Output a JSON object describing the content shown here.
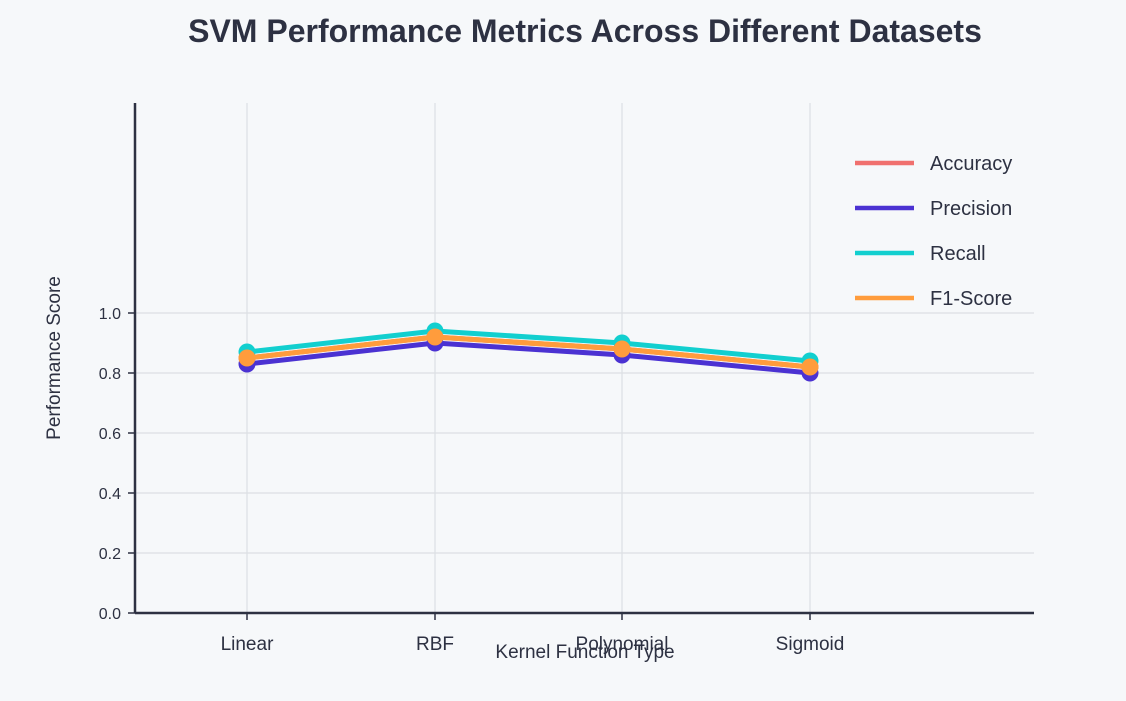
{
  "chart_data": {
    "type": "line",
    "title": "SVM Performance Metrics Across Different Datasets",
    "xlabel": "Kernel Function Type",
    "ylabel": "Performance Score",
    "categories": [
      "Linear",
      "RBF",
      "Polynomial",
      "Sigmoid"
    ],
    "ylim": [
      0,
      1.7
    ],
    "yticks": [
      0.0,
      0.2,
      0.4,
      0.6,
      0.8,
      1.0
    ],
    "ytick_labels": [
      "0.0",
      "0.2",
      "0.4",
      "0.6",
      "0.8",
      "1.0"
    ],
    "grid": true,
    "legend_position": "top-right",
    "series": [
      {
        "name": "Accuracy",
        "color": "#f0706e",
        "values": [
          0.85,
          0.92,
          0.88,
          0.82
        ]
      },
      {
        "name": "Precision",
        "color": "#4b32d2",
        "values": [
          0.83,
          0.9,
          0.86,
          0.8
        ]
      },
      {
        "name": "Recall",
        "color": "#12cfcf",
        "values": [
          0.87,
          0.94,
          0.9,
          0.84
        ]
      },
      {
        "name": "F1-Score",
        "color": "#ff9c3c",
        "values": [
          0.85,
          0.92,
          0.88,
          0.82
        ]
      }
    ]
  }
}
